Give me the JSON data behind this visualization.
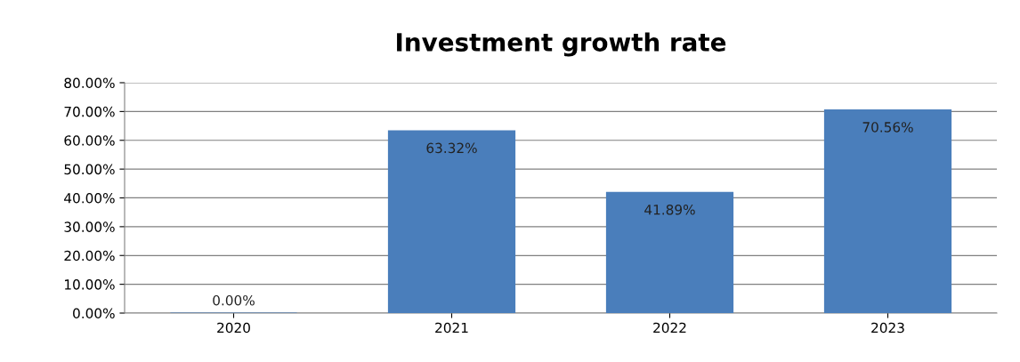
{
  "chart_data": {
    "type": "bar",
    "title": "Investment growth rate",
    "categories": [
      "2020",
      "2021",
      "2022",
      "2023"
    ],
    "values": [
      0,
      63.32,
      41.89,
      70.56
    ],
    "value_labels": [
      "0.00%",
      "63.32%",
      "41.89%",
      "70.56%"
    ],
    "color": "#4a7ebb",
    "ylim": [
      0,
      80
    ],
    "yticks": [
      {
        "value": 0,
        "label": "0.00%"
      },
      {
        "value": 10,
        "label": "10.00%"
      },
      {
        "value": 20,
        "label": "20.00%"
      },
      {
        "value": 30,
        "label": "30.00%"
      },
      {
        "value": 40,
        "label": "40.00%"
      },
      {
        "value": 50,
        "label": "50.00%"
      },
      {
        "value": 60,
        "label": "60.00%"
      },
      {
        "value": 70,
        "label": "70.00%"
      },
      {
        "value": 80,
        "label": "80.00%"
      }
    ],
    "grid": "y",
    "legend": false
  }
}
